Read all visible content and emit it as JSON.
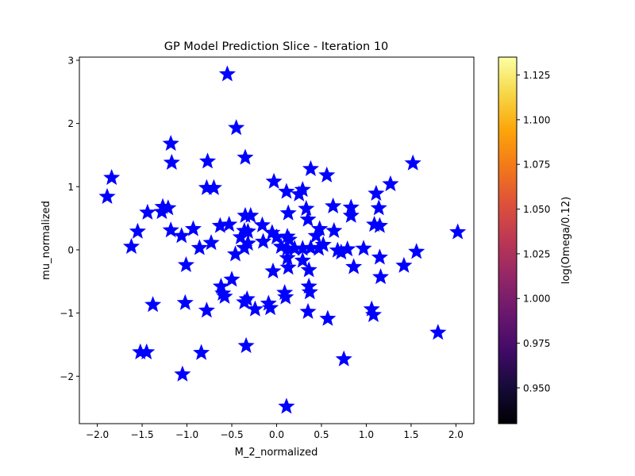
{
  "chart_data": {
    "type": "scatter",
    "title": "GP Model Prediction Slice - Iteration 10",
    "xlabel": "M_2_normalized",
    "ylabel": "mu_normalized",
    "xlim": [
      -2.2,
      2.2
    ],
    "ylim": [
      -2.75,
      3.05
    ],
    "xticks": [
      -2.0,
      -1.5,
      -1.0,
      -0.5,
      0.0,
      0.5,
      1.0,
      1.5,
      2.0
    ],
    "xtick_labels": [
      "−2.0",
      "−1.5",
      "−1.0",
      "−0.5",
      "0.0",
      "0.5",
      "1.0",
      "1.5",
      "2.0"
    ],
    "yticks": [
      -2,
      -1,
      0,
      1,
      2,
      3
    ],
    "ytick_labels": [
      "−2",
      "−1",
      "0",
      "1",
      "2",
      "3"
    ],
    "marker": "star",
    "marker_color": "#0000ff",
    "grid": false,
    "colorbar": {
      "label": "log(Omega/0.12)",
      "colormap": "plasma",
      "range": [
        0.93,
        1.135
      ],
      "ticks": [
        0.95,
        0.975,
        1.0,
        1.025,
        1.05,
        1.075,
        1.1,
        1.125
      ],
      "tick_labels": [
        "0.950",
        "0.975",
        "1.000",
        "1.025",
        "1.050",
        "1.075",
        "1.100",
        "1.125"
      ]
    },
    "points": [
      [
        -0.55,
        2.78
      ],
      [
        -0.45,
        1.93
      ],
      [
        -1.18,
        1.68
      ],
      [
        -1.84,
        1.14
      ],
      [
        -1.89,
        0.84
      ],
      [
        -1.17,
        1.38
      ],
      [
        -0.35,
        1.46
      ],
      [
        -0.77,
        1.4
      ],
      [
        -0.78,
        0.98
      ],
      [
        -0.7,
        0.98
      ],
      [
        -1.27,
        0.68
      ],
      [
        -1.21,
        0.66
      ],
      [
        -1.28,
        0.6
      ],
      [
        -1.44,
        0.59
      ],
      [
        -1.55,
        0.29
      ],
      [
        -1.62,
        0.05
      ],
      [
        -1.18,
        0.31
      ],
      [
        -1.06,
        0.22
      ],
      [
        -0.93,
        0.33
      ],
      [
        -0.86,
        0.03
      ],
      [
        -0.73,
        0.11
      ],
      [
        -0.63,
        0.38
      ],
      [
        -0.53,
        0.4
      ],
      [
        -0.35,
        0.54
      ],
      [
        -0.29,
        0.54
      ],
      [
        -0.16,
        0.39
      ],
      [
        -0.36,
        0.3
      ],
      [
        -0.32,
        0.29
      ],
      [
        -0.4,
        0.2
      ],
      [
        -0.32,
        0.1
      ],
      [
        -0.36,
        0.03
      ],
      [
        -0.46,
        -0.07
      ],
      [
        -0.15,
        0.13
      ],
      [
        -0.05,
        0.27
      ],
      [
        0.0,
        0.2
      ],
      [
        -0.03,
        1.08
      ],
      [
        0.11,
        0.92
      ],
      [
        0.25,
        0.88
      ],
      [
        0.29,
        0.95
      ],
      [
        0.38,
        1.28
      ],
      [
        0.56,
        1.18
      ],
      [
        1.11,
        0.89
      ],
      [
        1.27,
        1.04
      ],
      [
        1.52,
        1.37
      ],
      [
        0.63,
        0.69
      ],
      [
        0.83,
        0.67
      ],
      [
        0.83,
        0.54
      ],
      [
        1.14,
        0.66
      ],
      [
        1.09,
        0.4
      ],
      [
        1.15,
        0.38
      ],
      [
        0.13,
        0.58
      ],
      [
        0.33,
        0.65
      ],
      [
        0.35,
        0.48
      ],
      [
        0.48,
        0.33
      ],
      [
        0.44,
        0.22
      ],
      [
        0.64,
        0.3
      ],
      [
        0.12,
        0.21
      ],
      [
        0.14,
        0.16
      ],
      [
        0.05,
        0.05
      ],
      [
        0.12,
        0.02
      ],
      [
        0.2,
        0.02
      ],
      [
        0.29,
        0.02
      ],
      [
        0.38,
        0.03
      ],
      [
        0.47,
        0.02
      ],
      [
        0.52,
        0.08
      ],
      [
        0.68,
        -0.01
      ],
      [
        0.79,
        0.01
      ],
      [
        0.97,
        0.02
      ],
      [
        0.72,
        -0.04
      ],
      [
        1.15,
        -0.12
      ],
      [
        1.56,
        -0.03
      ],
      [
        1.42,
        -0.25
      ],
      [
        0.86,
        -0.27
      ],
      [
        1.16,
        -0.43
      ],
      [
        0.12,
        -0.13
      ],
      [
        0.13,
        -0.28
      ],
      [
        0.29,
        -0.17
      ],
      [
        0.36,
        -0.32
      ],
      [
        -0.04,
        -0.34
      ],
      [
        -0.5,
        -0.47
      ],
      [
        -0.62,
        -0.58
      ],
      [
        -0.6,
        -0.69
      ],
      [
        -0.58,
        -0.74
      ],
      [
        -0.33,
        -0.78
      ],
      [
        -0.36,
        -0.83
      ],
      [
        -0.24,
        -0.94
      ],
      [
        -0.09,
        -0.85
      ],
      [
        -0.07,
        -0.92
      ],
      [
        0.09,
        -0.68
      ],
      [
        0.1,
        -0.75
      ],
      [
        0.36,
        -0.58
      ],
      [
        0.37,
        -0.67
      ],
      [
        0.35,
        -0.98
      ],
      [
        0.57,
        -1.09
      ],
      [
        1.06,
        -0.94
      ],
      [
        1.08,
        -1.03
      ],
      [
        -0.78,
        -0.96
      ],
      [
        -1.02,
        -0.84
      ],
      [
        -1.38,
        -0.87
      ],
      [
        -1.01,
        -0.24
      ],
      [
        -0.34,
        -1.52
      ],
      [
        -0.84,
        -1.63
      ],
      [
        -1.52,
        -1.62
      ],
      [
        -1.45,
        -1.62
      ],
      [
        -1.05,
        -1.97
      ],
      [
        0.75,
        -1.73
      ],
      [
        1.8,
        -1.31
      ],
      [
        2.02,
        0.28
      ],
      [
        0.11,
        -2.48
      ]
    ]
  }
}
